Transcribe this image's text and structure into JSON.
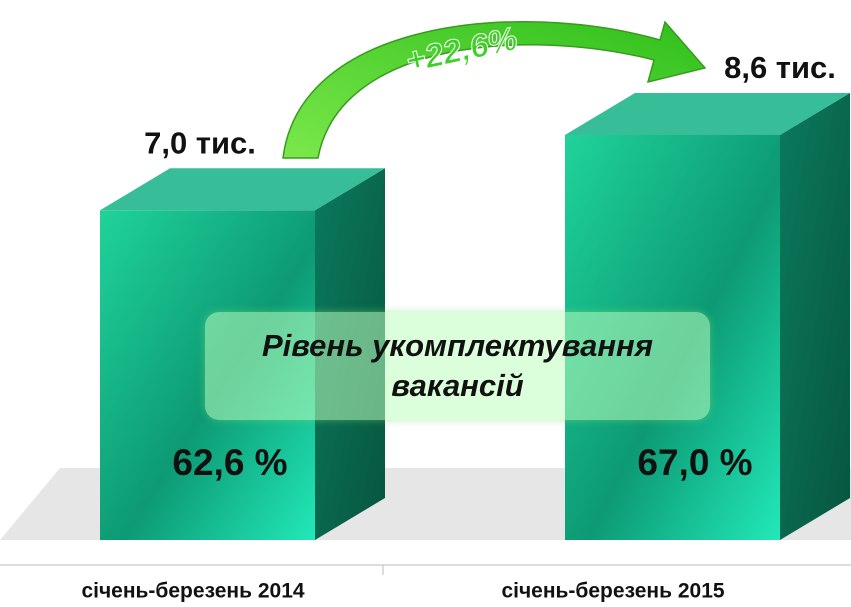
{
  "chart_data": {
    "type": "bar",
    "categories": [
      "січень-березень 2014",
      "січень-березень 2015"
    ],
    "values": [
      7.0,
      8.6
    ],
    "value_labels": [
      "7,0 тис.",
      "8,6 тис."
    ],
    "change": {
      "value": 22.6,
      "label": "+22,6%"
    },
    "fill_rate": {
      "name": "Рівень укомплектування вакансій",
      "values": [
        62.6,
        67.0
      ],
      "value_labels": [
        "62,6 %",
        "67,0 %"
      ]
    },
    "color": "#14b386"
  }
}
